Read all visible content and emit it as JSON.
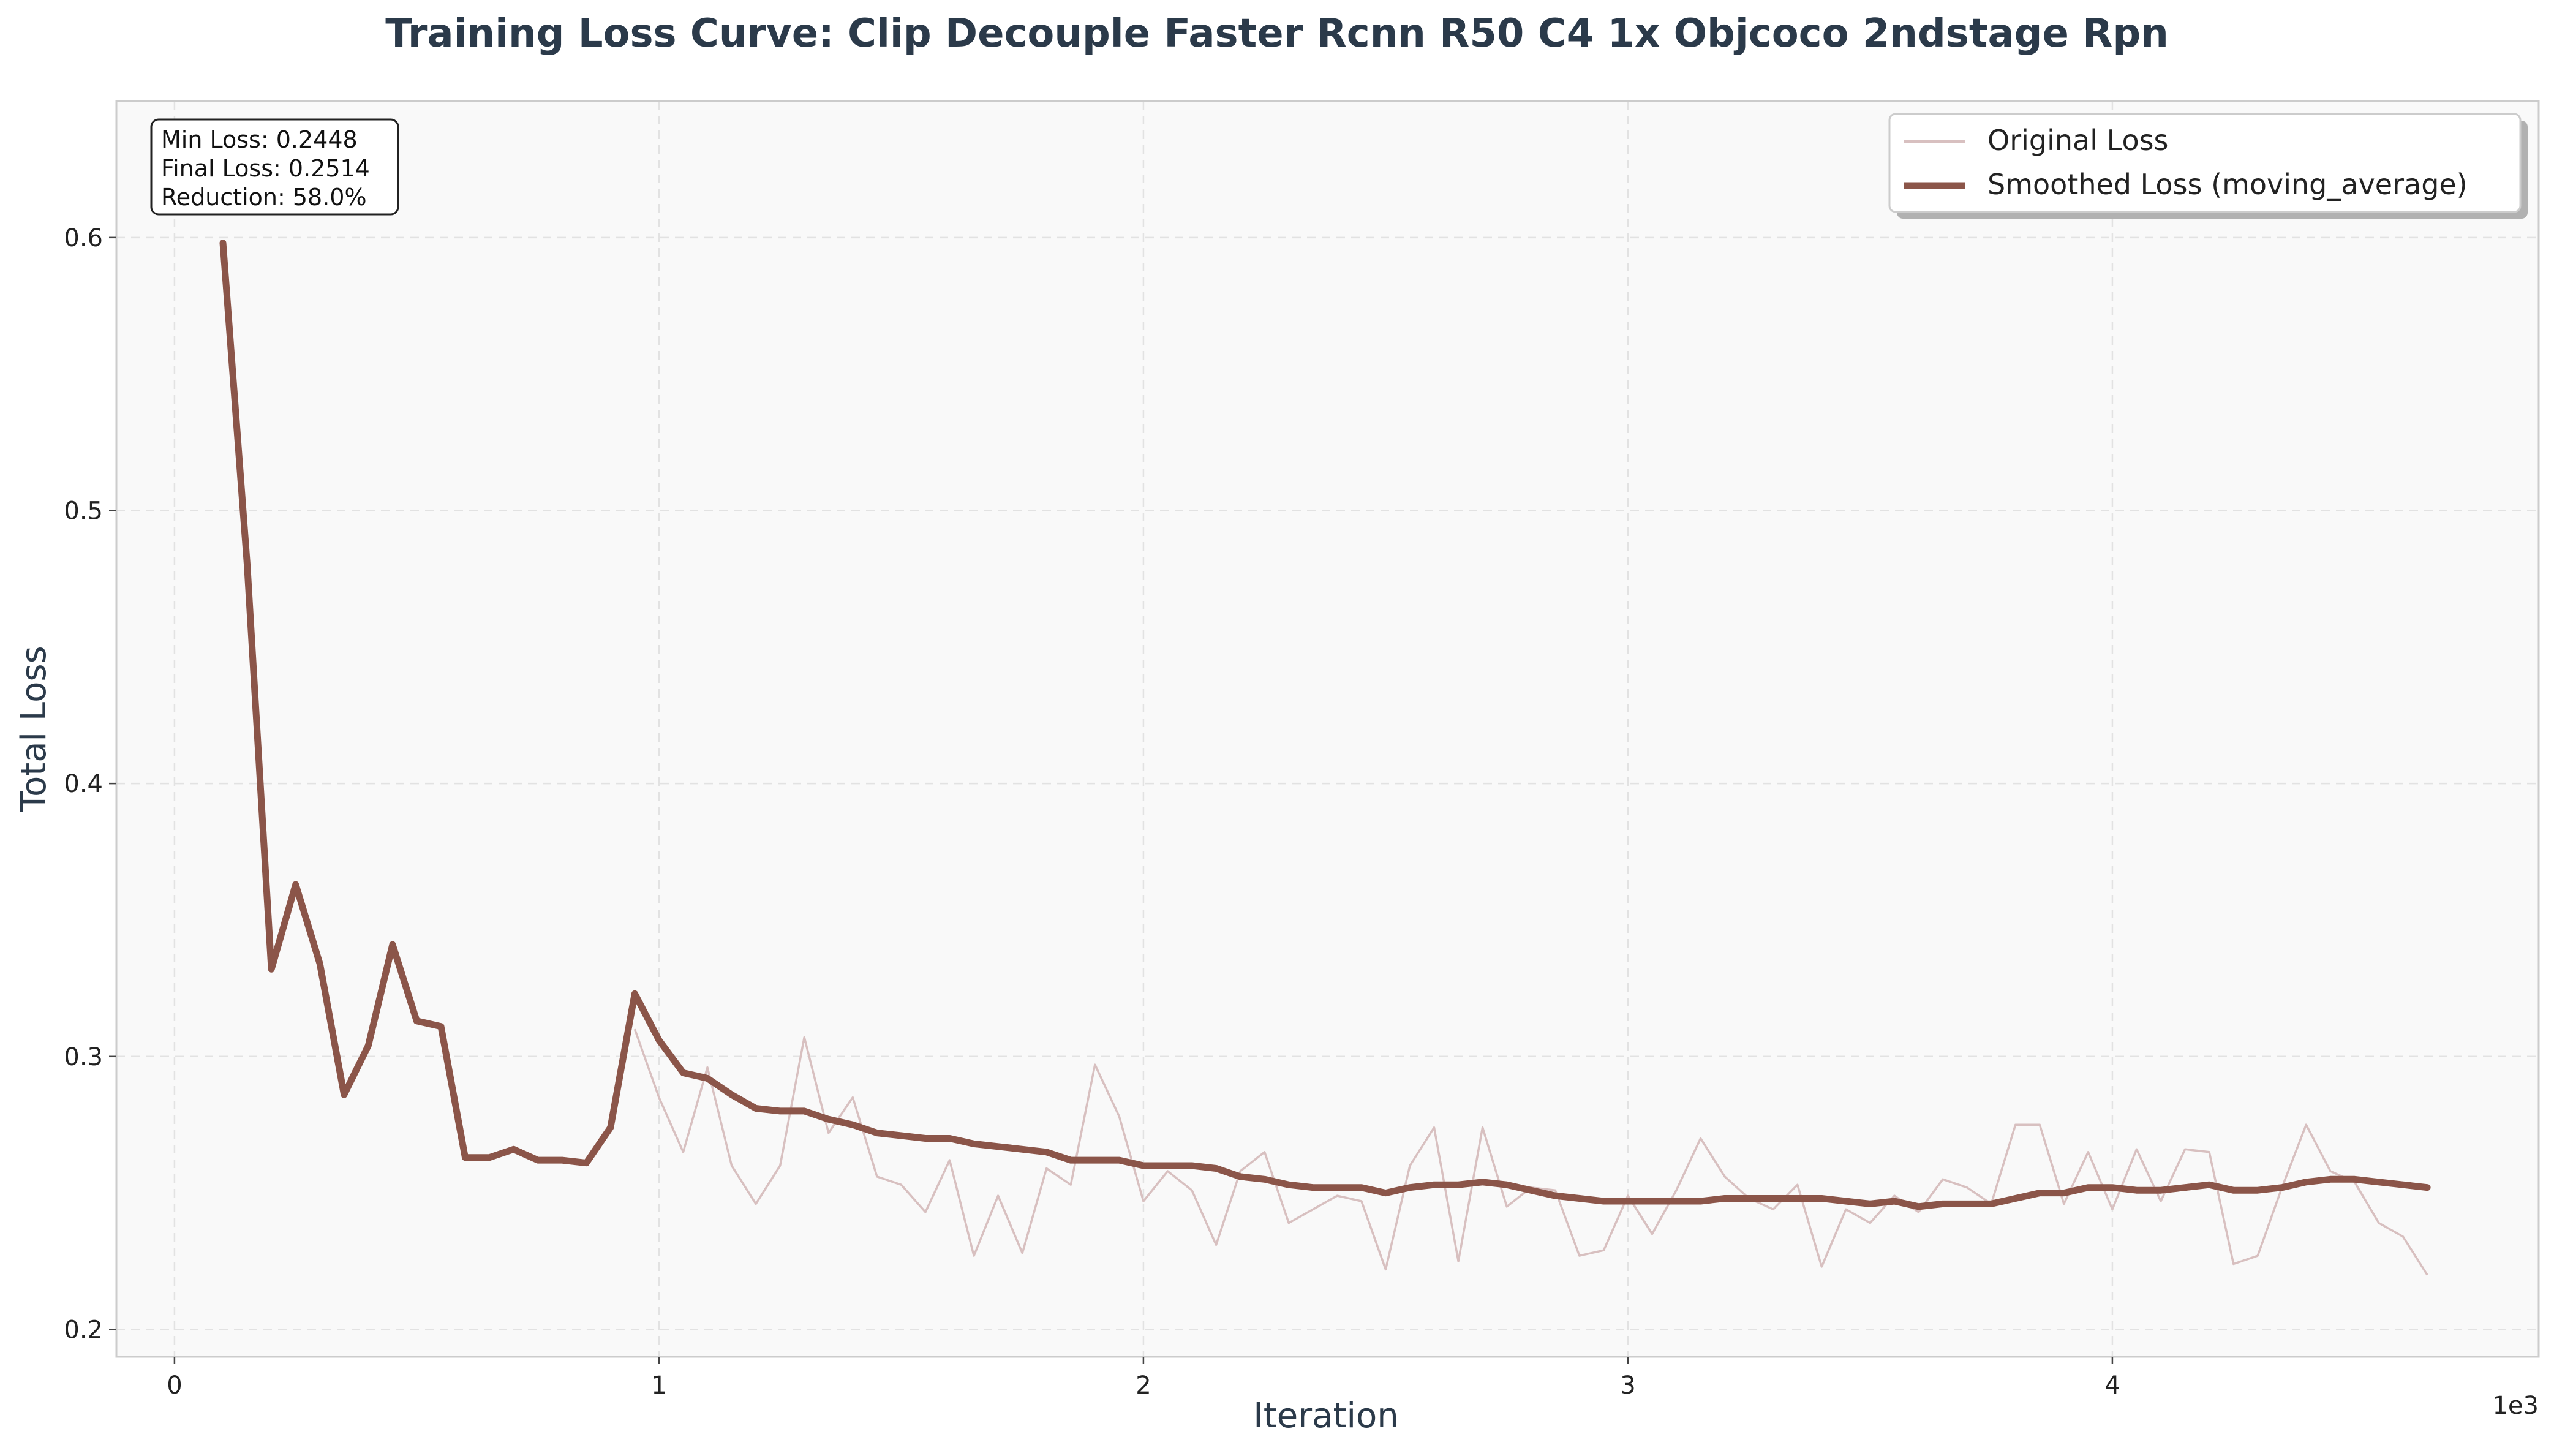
{
  "chart_data": {
    "type": "line",
    "title": "Training Loss Curve: Clip Decouple Faster Rcnn R50 C4 1x Objcoco 2ndstage Rpn",
    "xlabel": "Iteration",
    "ylabel": "Total Loss",
    "x_offset_label": "1e3",
    "xlim": [
      -120,
      4880
    ],
    "ylim": [
      0.19,
      0.65
    ],
    "x_ticks": [
      0,
      1000,
      2000,
      3000,
      4000
    ],
    "x_tick_labels": [
      "0",
      "1",
      "2",
      "3",
      "4"
    ],
    "y_ticks": [
      0.2,
      0.3,
      0.4,
      0.5,
      0.6
    ],
    "y_tick_labels": [
      "0.2",
      "0.3",
      "0.4",
      "0.5",
      "0.6"
    ],
    "grid": true,
    "legend_position": "top-right",
    "stats_box": [
      "Min Loss: 0.2448",
      "Final Loss: 0.2514",
      "Reduction: 58.0%"
    ],
    "colors": {
      "original": "#d8c0c0",
      "smoothed": "#8b5549",
      "title": "#2b3a4a",
      "plot_background": "#f9f9f9"
    },
    "series": [
      {
        "name": "Original Loss",
        "x": [
          950,
          1000,
          1050,
          1100,
          1150,
          1200,
          1250,
          1300,
          1350,
          1400,
          1450,
          1500,
          1550,
          1600,
          1650,
          1700,
          1750,
          1800,
          1850,
          1900,
          1950,
          2000,
          2050,
          2100,
          2150,
          2200,
          2250,
          2300,
          2350,
          2400,
          2450,
          2500,
          2550,
          2600,
          2650,
          2700,
          2750,
          2800,
          2850,
          2900,
          2950,
          3000,
          3050,
          3100,
          3150,
          3200,
          3250,
          3300,
          3350,
          3400,
          3450,
          3500,
          3550,
          3600,
          3650,
          3700,
          3750,
          3800,
          3850,
          3900,
          3950,
          4000,
          4050,
          4100,
          4150,
          4200,
          4250,
          4300,
          4350,
          4400,
          4450,
          4500,
          4550,
          4600,
          4650
        ],
        "y": [
          0.31,
          0.285,
          0.265,
          0.296,
          0.26,
          0.246,
          0.26,
          0.307,
          0.272,
          0.285,
          0.256,
          0.253,
          0.243,
          0.262,
          0.227,
          0.249,
          0.228,
          0.259,
          0.253,
          0.297,
          0.278,
          0.247,
          0.258,
          0.251,
          0.231,
          0.258,
          0.265,
          0.239,
          0.244,
          0.249,
          0.247,
          0.222,
          0.26,
          0.274,
          0.225,
          0.274,
          0.245,
          0.252,
          0.251,
          0.227,
          0.229,
          0.249,
          0.235,
          0.251,
          0.27,
          0.256,
          0.248,
          0.244,
          0.253,
          0.223,
          0.244,
          0.239,
          0.249,
          0.243,
          0.255,
          0.252,
          0.246,
          0.275,
          0.275,
          0.246,
          0.265,
          0.244,
          0.266,
          0.247,
          0.266,
          0.265,
          0.224,
          0.227,
          0.252,
          0.275,
          0.258,
          0.254,
          0.239,
          0.234,
          0.22
        ]
      },
      {
        "name": "Smoothed Loss (moving_average)",
        "x": [
          100,
          150,
          200,
          250,
          300,
          350,
          400,
          450,
          500,
          550,
          600,
          650,
          700,
          750,
          800,
          850,
          900,
          950,
          1000,
          1050,
          1100,
          1150,
          1200,
          1250,
          1300,
          1350,
          1400,
          1450,
          1500,
          1550,
          1600,
          1650,
          1700,
          1750,
          1800,
          1850,
          1900,
          1950,
          2000,
          2050,
          2100,
          2150,
          2200,
          2250,
          2300,
          2350,
          2400,
          2450,
          2500,
          2550,
          2600,
          2650,
          2700,
          2750,
          2800,
          2850,
          2900,
          2950,
          3000,
          3050,
          3100,
          3150,
          3200,
          3250,
          3300,
          3350,
          3400,
          3450,
          3500,
          3550,
          3600,
          3650,
          3700,
          3750,
          3800,
          3850,
          3900,
          3950,
          4000,
          4050,
          4100,
          4150,
          4200,
          4250,
          4300,
          4350,
          4400,
          4450,
          4500,
          4550,
          4600,
          4650
        ],
        "y": [
          0.598,
          0.48,
          0.332,
          0.363,
          0.334,
          0.286,
          0.304,
          0.341,
          0.313,
          0.311,
          0.263,
          0.263,
          0.266,
          0.262,
          0.262,
          0.261,
          0.274,
          0.323,
          0.306,
          0.294,
          0.292,
          0.286,
          0.281,
          0.28,
          0.28,
          0.277,
          0.275,
          0.272,
          0.271,
          0.27,
          0.27,
          0.268,
          0.267,
          0.266,
          0.265,
          0.262,
          0.262,
          0.262,
          0.26,
          0.26,
          0.26,
          0.259,
          0.256,
          0.255,
          0.253,
          0.252,
          0.252,
          0.252,
          0.25,
          0.252,
          0.253,
          0.253,
          0.254,
          0.253,
          0.251,
          0.249,
          0.248,
          0.247,
          0.247,
          0.247,
          0.247,
          0.247,
          0.248,
          0.248,
          0.248,
          0.248,
          0.248,
          0.247,
          0.246,
          0.247,
          0.245,
          0.246,
          0.246,
          0.246,
          0.248,
          0.25,
          0.25,
          0.252,
          0.252,
          0.251,
          0.251,
          0.252,
          0.253,
          0.251,
          0.251,
          0.252,
          0.254,
          0.255,
          0.255,
          0.254,
          0.253,
          0.252
        ]
      }
    ]
  }
}
